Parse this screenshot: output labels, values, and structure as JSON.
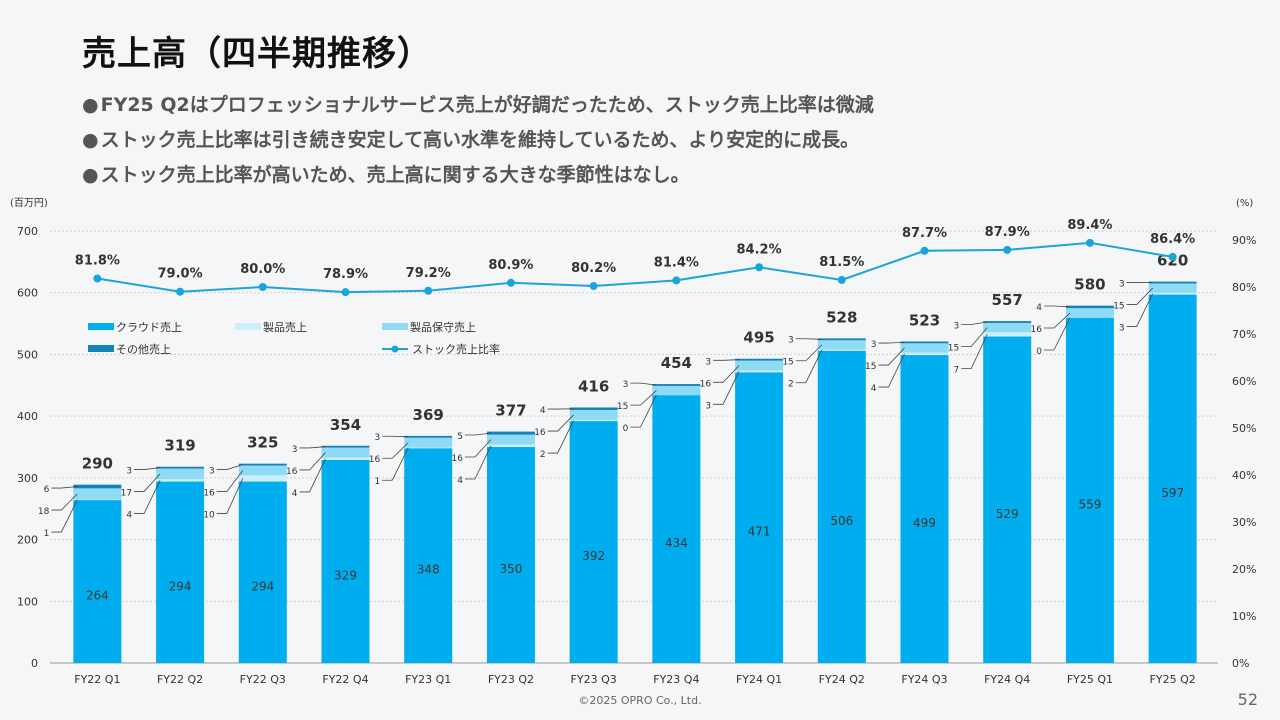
{
  "page": {
    "title": "売上高（四半期推移）",
    "bullets": [
      "FY25 Q2はプロフェッショナルサービス売上が好調だったため、ストック売上比率は微減",
      "ストック売上比率は引き続き安定して高い水準を維持しているため、より安定的に成長。",
      "ストック売上比率が高いため、売上高に関する大きな季節性はなし。"
    ],
    "bullet_mark": "●",
    "footer": "©2025 OPRO Co., Ltd.",
    "page_number": "52"
  },
  "chart_data": {
    "type": "bar",
    "stacked": true,
    "ylabel_left": "(百万円)",
    "ylabel_right": "(%)",
    "ylim_left": [
      0,
      700
    ],
    "yticks_left": [
      "0",
      "100",
      "200",
      "300",
      "400",
      "500",
      "600",
      "700"
    ],
    "ylim_right": [
      0,
      90
    ],
    "yticks_right": [
      "0%",
      "10%",
      "20%",
      "30%",
      "40%",
      "50%",
      "60%",
      "70%",
      "80%",
      "90%"
    ],
    "categories": [
      "FY22 Q1",
      "FY22 Q2",
      "FY22 Q3",
      "FY22 Q4",
      "FY23 Q1",
      "FY23 Q2",
      "FY23 Q3",
      "FY23 Q4",
      "FY24 Q1",
      "FY24 Q2",
      "FY24 Q3",
      "FY24 Q4",
      "FY25 Q1",
      "FY25 Q2"
    ],
    "series": [
      {
        "name": "クラウド売上",
        "color": "#00aeef",
        "values": [
          264,
          294,
          294,
          329,
          348,
          350,
          392,
          434,
          471,
          506,
          499,
          529,
          559,
          597
        ]
      },
      {
        "name": "製品売上",
        "color": "#cdeefb",
        "values": [
          1,
          4,
          10,
          4,
          1,
          4,
          2,
          0,
          3,
          2,
          4,
          7,
          0,
          3
        ]
      },
      {
        "name": "製品保守売上",
        "color": "#8fdaf4",
        "values": [
          18,
          17,
          16,
          16,
          16,
          16,
          16,
          15,
          16,
          15,
          15,
          15,
          16,
          15
        ]
      },
      {
        "name": "その他売上",
        "color": "#1583b8",
        "values": [
          6,
          3,
          3,
          3,
          3,
          5,
          4,
          3,
          3,
          3,
          3,
          3,
          4,
          3
        ]
      }
    ],
    "totals": [
      290,
      319,
      325,
      354,
      369,
      377,
      416,
      454,
      495,
      528,
      523,
      557,
      580,
      620
    ],
    "line": {
      "name": "ストック売上比率",
      "color": "#1ba3de",
      "values": [
        81.8,
        79.0,
        80.0,
        78.9,
        79.2,
        80.9,
        80.2,
        81.4,
        84.2,
        81.5,
        87.7,
        87.9,
        89.4,
        86.4
      ],
      "labels": [
        "81.8%",
        "79.0%",
        "80.0%",
        "78.9%",
        "79.2%",
        "80.9%",
        "80.2%",
        "81.4%",
        "84.2%",
        "81.5%",
        "87.7%",
        "87.9%",
        "89.4%",
        "86.4%"
      ]
    },
    "legend": [
      "クラウド売上",
      "製品売上",
      "製品保守売上",
      "その他売上",
      "ストック売上比率"
    ],
    "legend_position": "top-left",
    "grid": true
  }
}
